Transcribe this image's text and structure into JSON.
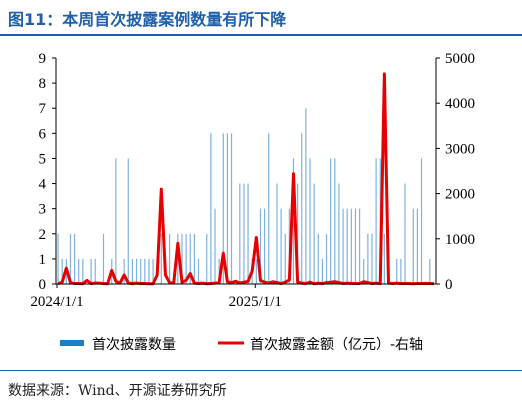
{
  "title": "图11：本周首次披露案例数量有所下降",
  "source": "数据来源：Wind、开源证券研究所",
  "colors": {
    "bars": "#7fb3dd",
    "line": "#e60000",
    "title": "#1f5fa8"
  },
  "chart_data": {
    "type": "bar+line",
    "left_axis": {
      "ticks": [
        "0",
        "1",
        "2",
        "3",
        "4",
        "5",
        "6",
        "7",
        "8",
        "9"
      ],
      "ylim": [
        0,
        9
      ]
    },
    "right_axis": {
      "ticks": [
        "0",
        "1000",
        "2000",
        "3000",
        "4000",
        "5000"
      ],
      "ylim": [
        0,
        5000
      ]
    },
    "x_labels": [
      "2024/1/1",
      "2025/1/1"
    ],
    "legend": [
      "首次披露数量",
      "首次披露金额（亿元）-右轴"
    ],
    "series": [
      {
        "name": "首次披露数量",
        "axis": "left",
        "type": "bar",
        "values": [
          2,
          1,
          1,
          2,
          2,
          1,
          1,
          0,
          1,
          1,
          0,
          2,
          0,
          1,
          5,
          0,
          1,
          5,
          1,
          1,
          1,
          1,
          1,
          1,
          0,
          2,
          0,
          2,
          0,
          2,
          2,
          2,
          2,
          2,
          1,
          0,
          2,
          6,
          3,
          1,
          6,
          6,
          6,
          0,
          4,
          4,
          4,
          1,
          1,
          3,
          3,
          6,
          0,
          4,
          3,
          2,
          3,
          5,
          4,
          6,
          7,
          5,
          4,
          2,
          1,
          2,
          5,
          5,
          4,
          3,
          3,
          3,
          3,
          3,
          1,
          2,
          2,
          5,
          5,
          2,
          1,
          0,
          1,
          1,
          4,
          0,
          3,
          3,
          5,
          0,
          1,
          0
        ]
      },
      {
        "name": "首次披露金额（亿元）-右轴",
        "axis": "right",
        "type": "line",
        "values": [
          5,
          40,
          350,
          30,
          10,
          10,
          5,
          80,
          10,
          20,
          20,
          10,
          5,
          300,
          60,
          20,
          200,
          20,
          10,
          20,
          10,
          10,
          5,
          5,
          200,
          2100,
          200,
          30,
          20,
          900,
          40,
          80,
          230,
          20,
          10,
          20,
          5,
          10,
          20,
          30,
          680,
          50,
          30,
          60,
          20,
          40,
          60,
          290,
          1030,
          80,
          40,
          20,
          50,
          30,
          10,
          40,
          90,
          2440,
          40,
          20,
          10,
          40,
          5,
          20,
          10,
          30,
          40,
          50,
          30,
          10,
          20,
          15,
          10,
          10,
          50,
          30,
          10,
          20,
          10,
          4650,
          20,
          10,
          20,
          10,
          10,
          10,
          5,
          10,
          10,
          15,
          10,
          5
        ]
      }
    ]
  }
}
